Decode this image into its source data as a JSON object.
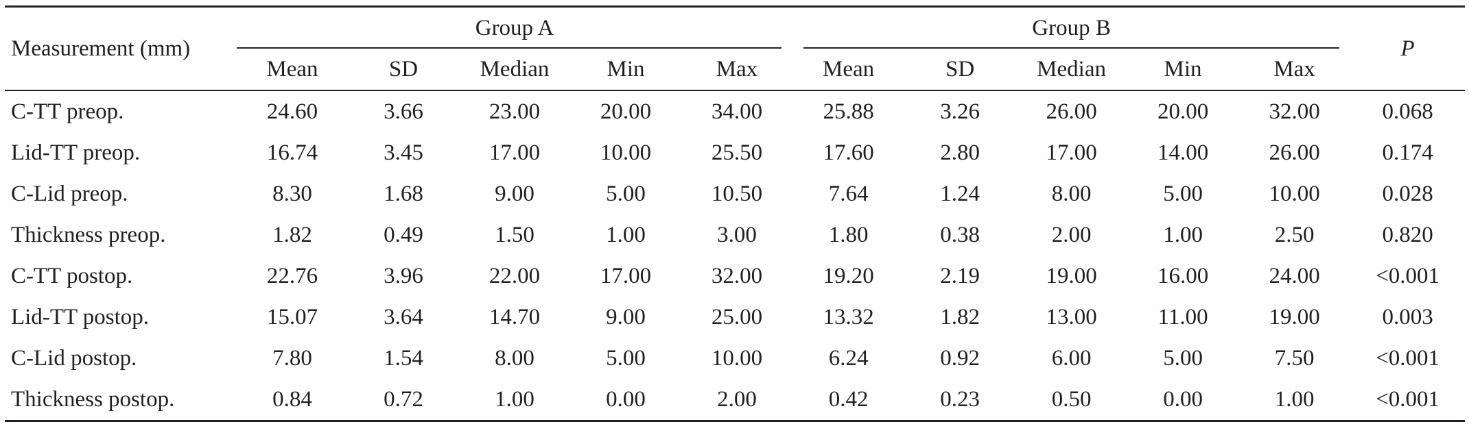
{
  "table": {
    "measurement_header": "Measurement (mm)",
    "p_header": "P",
    "groups": [
      {
        "label": "Group A"
      },
      {
        "label": "Group B"
      }
    ],
    "sub_headers": [
      "Mean",
      "SD",
      "Median",
      "Min",
      "Max",
      "Mean",
      "SD",
      "Median",
      "Min",
      "Max"
    ],
    "rows": [
      {
        "label": "C-TT preop.",
        "values": [
          "24.60",
          "3.66",
          "23.00",
          "20.00",
          "34.00",
          "25.88",
          "3.26",
          "26.00",
          "20.00",
          "32.00",
          "0.068"
        ]
      },
      {
        "label": "Lid-TT preop.",
        "values": [
          "16.74",
          "3.45",
          "17.00",
          "10.00",
          "25.50",
          "17.60",
          "2.80",
          "17.00",
          "14.00",
          "26.00",
          "0.174"
        ]
      },
      {
        "label": "C-Lid preop.",
        "values": [
          "8.30",
          "1.68",
          "9.00",
          "5.00",
          "10.50",
          "7.64",
          "1.24",
          "8.00",
          "5.00",
          "10.00",
          "0.028"
        ]
      },
      {
        "label": "Thickness preop.",
        "values": [
          "1.82",
          "0.49",
          "1.50",
          "1.00",
          "3.00",
          "1.80",
          "0.38",
          "2.00",
          "1.00",
          "2.50",
          "0.820"
        ]
      },
      {
        "label": "C-TT postop.",
        "values": [
          "22.76",
          "3.96",
          "22.00",
          "17.00",
          "32.00",
          "19.20",
          "2.19",
          "19.00",
          "16.00",
          "24.00",
          "<0.001"
        ]
      },
      {
        "label": "Lid-TT postop.",
        "values": [
          "15.07",
          "3.64",
          "14.70",
          "9.00",
          "25.00",
          "13.32",
          "1.82",
          "13.00",
          "11.00",
          "19.00",
          "0.003"
        ]
      },
      {
        "label": "C-Lid postop.",
        "values": [
          "7.80",
          "1.54",
          "8.00",
          "5.00",
          "10.00",
          "6.24",
          "0.92",
          "6.00",
          "5.00",
          "7.50",
          "<0.001"
        ]
      },
      {
        "label": "Thickness postop.",
        "values": [
          "0.84",
          "0.72",
          "1.00",
          "0.00",
          "2.00",
          "0.42",
          "0.23",
          "0.50",
          "0.00",
          "1.00",
          "<0.001"
        ]
      }
    ]
  }
}
